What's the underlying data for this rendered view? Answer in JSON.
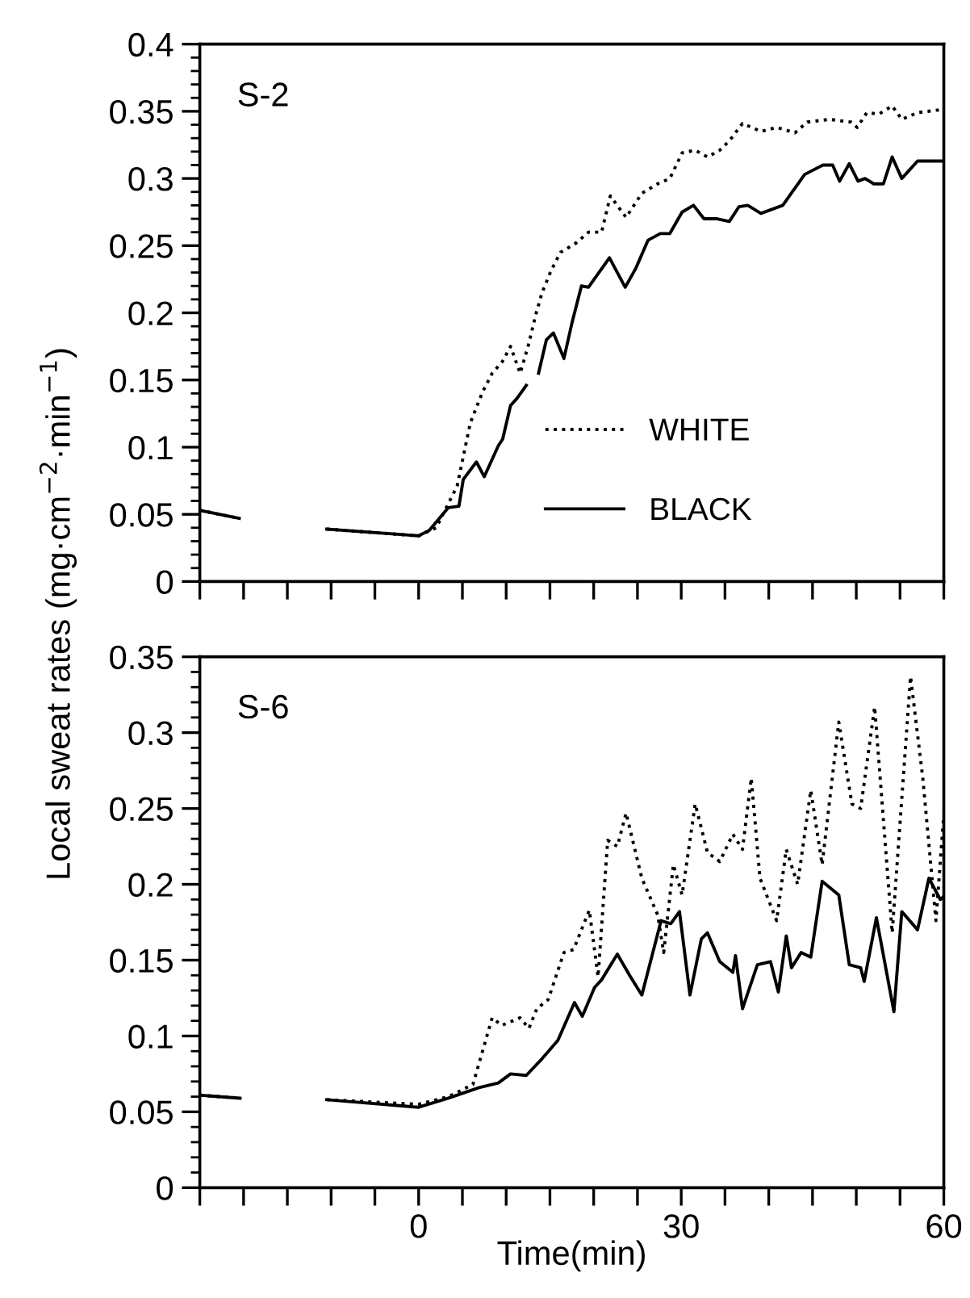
{
  "chart_data": [
    {
      "type": "line",
      "ylabel": "Local sweat rates (mg·cm$^{−2}$·min$^{−1}$)",
      "annotations": [
        "S-2"
      ],
      "tick_labels": "y",
      "legend": "lower right",
      "marker": "none",
      "grid": false,
      "xlim": [
        -25,
        60
      ],
      "ylim": [
        0,
        0.4
      ],
      "xticks": [
        {
          "value": -25,
          "label": null
        },
        {
          "value": -20,
          "label": null
        },
        {
          "value": -15,
          "label": null
        },
        {
          "value": -10,
          "label": null
        },
        {
          "value": -5,
          "label": null
        },
        {
          "value": 0,
          "label": null
        },
        {
          "value": 5,
          "label": null
        },
        {
          "value": 10,
          "label": null
        },
        {
          "value": 15,
          "label": null
        },
        {
          "value": 20,
          "label": null
        },
        {
          "value": 25,
          "label": null
        },
        {
          "value": 30,
          "label": null
        },
        {
          "value": 35,
          "label": null
        },
        {
          "value": 40,
          "label": null
        },
        {
          "value": 45,
          "label": null
        },
        {
          "value": 50,
          "label": null
        },
        {
          "value": 55,
          "label": null
        },
        {
          "value": 60,
          "label": null
        }
      ],
      "yticks": [
        0,
        {
          "value": 0.01,
          "label": null
        },
        {
          "value": 0.02,
          "label": null
        },
        {
          "value": 0.03,
          "label": null
        },
        {
          "value": 0.04,
          "label": null
        },
        0.05,
        {
          "value": 0.06,
          "label": null
        },
        {
          "value": 0.07,
          "label": null
        },
        {
          "value": 0.08,
          "label": null
        },
        {
          "value": 0.09,
          "label": null
        },
        0.1,
        {
          "value": 0.11,
          "label": null
        },
        {
          "value": 0.12,
          "label": null
        },
        {
          "value": 0.13,
          "label": null
        },
        {
          "value": 0.14,
          "label": null
        },
        0.15,
        {
          "value": 0.16,
          "label": null
        },
        {
          "value": 0.17,
          "label": null
        },
        {
          "value": 0.18,
          "label": null
        },
        {
          "value": 0.19,
          "label": null
        },
        0.2,
        {
          "value": 0.21,
          "label": null
        },
        {
          "value": 0.22,
          "label": null
        },
        {
          "value": 0.23,
          "label": null
        },
        {
          "value": 0.24,
          "label": null
        },
        0.25,
        {
          "value": 0.26,
          "label": null
        },
        {
          "value": 0.27,
          "label": null
        },
        {
          "value": 0.28,
          "label": null
        },
        {
          "value": 0.29,
          "label": null
        },
        0.3,
        {
          "value": 0.31,
          "label": null
        },
        {
          "value": 0.32,
          "label": null
        },
        {
          "value": 0.33,
          "label": null
        },
        {
          "value": 0.34,
          "label": null
        },
        0.35,
        {
          "value": 0.36,
          "label": null
        },
        {
          "value": 0.37,
          "label": null
        },
        {
          "value": 0.38,
          "label": null
        },
        {
          "value": 0.39,
          "label": null
        },
        0.4
      ],
      "series": [
        {
          "name": "WHITE",
          "color": "#000000",
          "line_style": "dotted",
          "x": [
            -25,
            -20.5,
            -15,
            -10.5,
            0,
            2,
            4.4,
            5.9,
            7.3,
            8.4,
            9.6,
            10.5,
            11.6,
            12.5,
            13.4,
            14.1,
            15.1,
            16.2,
            18,
            19.4,
            20.9,
            21.9,
            23.7,
            25.5,
            27.3,
            28.7,
            30.1,
            31.6,
            33,
            34.4,
            35.5,
            37,
            39.1,
            40.9,
            43,
            44.4,
            46.9,
            49.4,
            50.1,
            51.2,
            52.6,
            54.1,
            55.2,
            57,
            59.4,
            60
          ],
          "values": [
            0.053,
            0.047,
            null,
            0.039,
            0.034,
            0.04,
            0.071,
            0.118,
            0.141,
            0.155,
            0.164,
            0.175,
            0.155,
            0.175,
            0.199,
            0.215,
            0.231,
            0.245,
            0.252,
            0.26,
            0.26,
            0.287,
            0.271,
            0.289,
            0.296,
            0.3,
            0.319,
            0.321,
            0.316,
            0.321,
            0.328,
            0.341,
            0.335,
            0.338,
            0.334,
            0.342,
            0.344,
            0.342,
            0.338,
            0.349,
            0.348,
            0.354,
            0.344,
            0.349,
            0.351,
            0.352
          ]
        },
        {
          "name": "BLACK",
          "color": "#000000",
          "line_style": "solid",
          "x": [
            -25,
            -20.5,
            -15,
            -10.5,
            0,
            1.2,
            3.4,
            4.6,
            5.1,
            6.6,
            7.5,
            9.1,
            9.6,
            10.5,
            11.2,
            12.3,
            13,
            13.7,
            14.6,
            15.4,
            16.6,
            17.5,
            18.6,
            19.4,
            21.8,
            23.6,
            24.8,
            26.2,
            27.6,
            28.7,
            30.1,
            31.4,
            32.6,
            34.1,
            35.5,
            36.6,
            37.6,
            39.1,
            41.6,
            44.1,
            46.2,
            47.3,
            48.1,
            49.2,
            50.2,
            51,
            52,
            53.1,
            54.1,
            55.2,
            57,
            60
          ],
          "values": [
            0.053,
            0.047,
            null,
            0.039,
            0.034,
            0.038,
            0.055,
            0.056,
            0.076,
            0.089,
            0.078,
            0.101,
            0.106,
            0.131,
            0.136,
            0.146,
            null,
            0.155,
            0.18,
            0.185,
            0.166,
            0.192,
            0.22,
            0.219,
            0.241,
            0.219,
            0.233,
            0.254,
            0.259,
            0.259,
            0.275,
            0.28,
            0.27,
            0.27,
            0.268,
            0.279,
            0.28,
            0.274,
            0.28,
            0.303,
            0.31,
            0.31,
            0.298,
            0.311,
            0.298,
            0.3,
            0.296,
            0.296,
            0.316,
            0.3,
            0.313,
            0.313
          ]
        }
      ]
    },
    {
      "type": "line",
      "xlabel": "Time(min)",
      "annotations": [
        "S-6"
      ],
      "marker": "none",
      "grid": false,
      "xlim": [
        -25,
        60
      ],
      "ylim": [
        0,
        0.35
      ],
      "xticks": [
        {
          "value": -25,
          "label": null
        },
        {
          "value": -20,
          "label": null
        },
        {
          "value": -15,
          "label": null
        },
        {
          "value": -10,
          "label": null
        },
        {
          "value": -5,
          "label": null
        },
        0,
        {
          "value": 5,
          "label": null
        },
        {
          "value": 10,
          "label": null
        },
        {
          "value": 15,
          "label": null
        },
        {
          "value": 20,
          "label": null
        },
        {
          "value": 25,
          "label": null
        },
        30,
        {
          "value": 35,
          "label": null
        },
        {
          "value": 40,
          "label": null
        },
        {
          "value": 45,
          "label": null
        },
        {
          "value": 50,
          "label": null
        },
        {
          "value": 55,
          "label": null
        },
        60
      ],
      "yticks": [
        0,
        {
          "value": 0.01,
          "label": null
        },
        {
          "value": 0.02,
          "label": null
        },
        {
          "value": 0.03,
          "label": null
        },
        {
          "value": 0.04,
          "label": null
        },
        0.05,
        {
          "value": 0.06,
          "label": null
        },
        {
          "value": 0.07,
          "label": null
        },
        {
          "value": 0.08,
          "label": null
        },
        {
          "value": 0.09,
          "label": null
        },
        0.1,
        {
          "value": 0.11,
          "label": null
        },
        {
          "value": 0.12,
          "label": null
        },
        {
          "value": 0.13,
          "label": null
        },
        {
          "value": 0.14,
          "label": null
        },
        0.15,
        {
          "value": 0.16,
          "label": null
        },
        {
          "value": 0.17,
          "label": null
        },
        {
          "value": 0.18,
          "label": null
        },
        {
          "value": 0.19,
          "label": null
        },
        0.2,
        {
          "value": 0.21,
          "label": null
        },
        {
          "value": 0.22,
          "label": null
        },
        {
          "value": 0.23,
          "label": null
        },
        {
          "value": 0.24,
          "label": null
        },
        0.25,
        {
          "value": 0.26,
          "label": null
        },
        {
          "value": 0.27,
          "label": null
        },
        {
          "value": 0.28,
          "label": null
        },
        {
          "value": 0.29,
          "label": null
        },
        0.3,
        {
          "value": 0.31,
          "label": null
        },
        {
          "value": 0.32,
          "label": null
        },
        {
          "value": 0.33,
          "label": null
        },
        {
          "value": 0.34,
          "label": null
        },
        0.35
      ],
      "series": [
        {
          "color": "#000000",
          "line_style": "dotted",
          "x": [
            -25,
            -20.4,
            -15,
            -10.5,
            0,
            3.4,
            6.2,
            8.4,
            9.5,
            11.6,
            12.6,
            13.5,
            14.8,
            16.6,
            17.7,
            19.5,
            20.5,
            21.6,
            22.7,
            23.7,
            25.5,
            27.3,
            28,
            29.1,
            30.1,
            31.6,
            33,
            34.4,
            35.9,
            37,
            38,
            39,
            40.9,
            42,
            43.3,
            44.8,
            46.1,
            48,
            49.5,
            50.5,
            52.1,
            54.1,
            56.2,
            57.6,
            59.1,
            60
          ],
          "values": [
            0.061,
            0.059,
            null,
            0.058,
            0.055,
            0.06,
            0.068,
            0.112,
            0.107,
            0.112,
            0.105,
            0.118,
            0.124,
            0.155,
            0.157,
            0.183,
            0.139,
            0.229,
            0.225,
            0.247,
            0.204,
            0.18,
            0.155,
            0.213,
            0.193,
            0.253,
            0.221,
            0.215,
            0.233,
            0.223,
            0.27,
            0.204,
            0.176,
            0.223,
            0.2,
            0.262,
            0.213,
            0.307,
            0.253,
            0.25,
            0.317,
            0.168,
            0.337,
            0.27,
            0.176,
            0.246
          ]
        },
        {
          "color": "#000000",
          "line_style": "solid",
          "x": [
            -25,
            -20.4,
            -15,
            -10.5,
            0,
            3.4,
            6.9,
            9.1,
            10.5,
            12.3,
            14.1,
            15.9,
            17.8,
            18.7,
            20.1,
            20.9,
            22.7,
            24.1,
            25.5,
            27.7,
            28.8,
            29.8,
            31,
            32.3,
            33,
            34.4,
            35.9,
            36.2,
            37,
            38.7,
            40.2,
            41.1,
            42,
            42.6,
            43.7,
            44.8,
            46.1,
            48,
            49.2,
            50.5,
            50.9,
            52.3,
            54.3,
            55.2,
            57,
            58.3,
            59.6,
            60
          ],
          "values": [
            0.061,
            0.059,
            null,
            0.058,
            0.053,
            0.059,
            0.066,
            0.069,
            0.075,
            0.074,
            0.085,
            0.097,
            0.122,
            0.113,
            0.132,
            0.137,
            0.154,
            0.14,
            0.127,
            0.176,
            0.174,
            0.182,
            0.127,
            0.164,
            0.168,
            0.149,
            0.142,
            0.153,
            0.118,
            0.147,
            0.149,
            0.129,
            0.166,
            0.145,
            0.155,
            0.152,
            0.202,
            0.193,
            0.147,
            0.145,
            0.136,
            0.178,
            0.116,
            0.182,
            0.17,
            0.204,
            0.19,
            0.192
          ]
        }
      ]
    }
  ]
}
